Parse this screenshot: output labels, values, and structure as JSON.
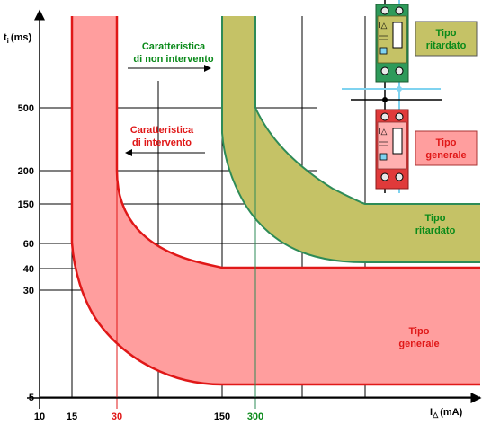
{
  "colors": {
    "red_band": "#ff9e9e",
    "red_line": "#e01818",
    "olive_band": "#c5c266",
    "green_line": "#2e8b57",
    "green_text": "#0a8a1a",
    "red_text": "#e01818",
    "device_green": "#2e9a5a",
    "device_red": "#e03a3a",
    "wire_blue": "#7fd3f0"
  },
  "y_axis": {
    "label_main": "t",
    "label_sub": "i",
    "label_unit": "(ms)",
    "ticks": [
      "500",
      "200",
      "150",
      "60",
      "40",
      "30",
      "5"
    ]
  },
  "x_axis": {
    "label_main": "I",
    "label_sub": "△",
    "label_unit": "(mA)",
    "ticks": [
      {
        "text": "10",
        "color": "black"
      },
      {
        "text": "15",
        "color": "black"
      },
      {
        "text": "30",
        "color": "red"
      },
      {
        "text": "150",
        "color": "black"
      },
      {
        "text": "300",
        "color": "green"
      }
    ]
  },
  "annotations": {
    "non_trip_line1": "Caratteristica",
    "non_trip_line2": "di non intervento",
    "trip_line1": "Caratteristica",
    "trip_line2": "di intervento",
    "delayed_band_line1": "Tipo",
    "delayed_band_line2": "ritardato",
    "general_band_line1": "Tipo",
    "general_band_line2": "generale"
  },
  "legend": {
    "delayed_line1": "Tipo",
    "delayed_line2": "ritardato",
    "general_line1": "Tipo",
    "general_line2": "generale",
    "device_symbol": "I△"
  }
}
